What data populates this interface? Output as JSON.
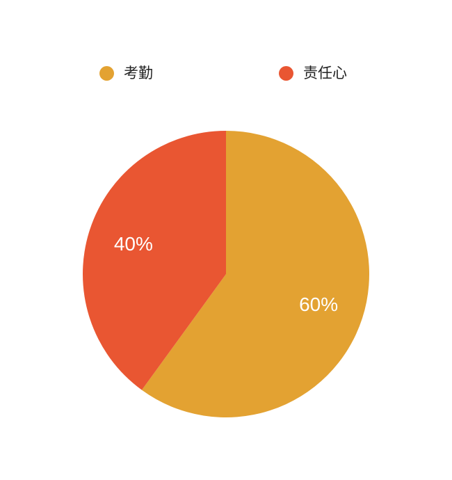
{
  "chart_data": {
    "type": "pie",
    "title": "",
    "categories": [
      "考勤",
      "责任心"
    ],
    "values": [
      60,
      40
    ],
    "value_labels": [
      "60%",
      "40%"
    ],
    "colors": [
      "#E3A232",
      "#E95632"
    ],
    "start_angle_deg": 0,
    "direction": "clockwise",
    "legend_position": "top",
    "legend": [
      {
        "label": "考勤",
        "color": "#E3A232"
      },
      {
        "label": "责任心",
        "color": "#E95632"
      }
    ]
  }
}
